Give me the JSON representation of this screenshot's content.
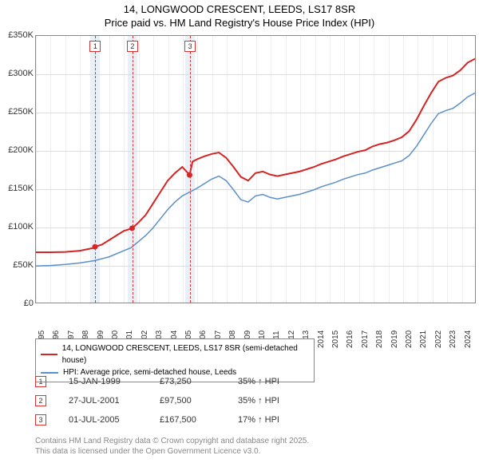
{
  "title_line1": "14, LONGWOOD CRESCENT, LEEDS, LS17 8SR",
  "title_line2": "Price paid vs. HM Land Registry's House Price Index (HPI)",
  "chart": {
    "type": "line",
    "x_min_year": 1995,
    "x_max_year": 2025,
    "y_min": 0,
    "y_max": 350000,
    "y_ticks": [
      0,
      50000,
      100000,
      150000,
      200000,
      250000,
      300000,
      350000
    ],
    "y_tick_labels": [
      "£0",
      "£50K",
      "£100K",
      "£150K",
      "£200K",
      "£250K",
      "£300K",
      "£350K"
    ],
    "x_ticks": [
      1995,
      1996,
      1997,
      1998,
      1999,
      2000,
      2001,
      2002,
      2003,
      2004,
      2005,
      2006,
      2007,
      2008,
      2009,
      2010,
      2011,
      2012,
      2013,
      2014,
      2015,
      2016,
      2017,
      2018,
      2019,
      2020,
      2021,
      2022,
      2023,
      2024
    ],
    "grid_color": "#dddddd",
    "background": "#ffffff",
    "border_color": "#888888",
    "series": [
      {
        "name": "price_paid",
        "label": "14, LONGWOOD CRESCENT, LEEDS, LS17 8SR (semi-detached house)",
        "color": "#d42424",
        "width": 2,
        "points": [
          [
            1995.0,
            66000
          ],
          [
            1996.0,
            66000
          ],
          [
            1997.0,
            66500
          ],
          [
            1998.0,
            68000
          ],
          [
            1999.0,
            72000
          ],
          [
            1999.04,
            73250
          ],
          [
            1999.5,
            76000
          ],
          [
            2000.0,
            82000
          ],
          [
            2000.5,
            88000
          ],
          [
            2001.0,
            94000
          ],
          [
            2001.57,
            97500
          ],
          [
            2002.0,
            105000
          ],
          [
            2002.5,
            115000
          ],
          [
            2003.0,
            130000
          ],
          [
            2003.5,
            145000
          ],
          [
            2004.0,
            160000
          ],
          [
            2004.5,
            170000
          ],
          [
            2005.0,
            178000
          ],
          [
            2005.5,
            167500
          ],
          [
            2005.7,
            185000
          ],
          [
            2006.0,
            188000
          ],
          [
            2006.5,
            192000
          ],
          [
            2007.0,
            195000
          ],
          [
            2007.5,
            197000
          ],
          [
            2008.0,
            190000
          ],
          [
            2008.5,
            178000
          ],
          [
            2009.0,
            165000
          ],
          [
            2009.5,
            160000
          ],
          [
            2010.0,
            170000
          ],
          [
            2010.5,
            172000
          ],
          [
            2011.0,
            168000
          ],
          [
            2011.5,
            166000
          ],
          [
            2012.0,
            168000
          ],
          [
            2012.5,
            170000
          ],
          [
            2013.0,
            172000
          ],
          [
            2013.5,
            175000
          ],
          [
            2014.0,
            178000
          ],
          [
            2014.5,
            182000
          ],
          [
            2015.0,
            185000
          ],
          [
            2015.5,
            188000
          ],
          [
            2016.0,
            192000
          ],
          [
            2016.5,
            195000
          ],
          [
            2017.0,
            198000
          ],
          [
            2017.5,
            200000
          ],
          [
            2018.0,
            205000
          ],
          [
            2018.5,
            208000
          ],
          [
            2019.0,
            210000
          ],
          [
            2019.5,
            213000
          ],
          [
            2020.0,
            217000
          ],
          [
            2020.5,
            225000
          ],
          [
            2021.0,
            240000
          ],
          [
            2021.5,
            258000
          ],
          [
            2022.0,
            275000
          ],
          [
            2022.5,
            290000
          ],
          [
            2023.0,
            295000
          ],
          [
            2023.5,
            298000
          ],
          [
            2024.0,
            305000
          ],
          [
            2024.5,
            315000
          ],
          [
            2025.0,
            320000
          ]
        ]
      },
      {
        "name": "hpi",
        "label": "HPI: Average price, semi-detached house, Leeds",
        "color": "#5b8fc9",
        "width": 1.5,
        "points": [
          [
            1995.0,
            48000
          ],
          [
            1996.0,
            48500
          ],
          [
            1997.0,
            50000
          ],
          [
            1998.0,
            52000
          ],
          [
            1999.0,
            55000
          ],
          [
            2000.0,
            60000
          ],
          [
            2001.0,
            68000
          ],
          [
            2001.5,
            72000
          ],
          [
            2002.0,
            80000
          ],
          [
            2002.5,
            88000
          ],
          [
            2003.0,
            98000
          ],
          [
            2003.5,
            110000
          ],
          [
            2004.0,
            122000
          ],
          [
            2004.5,
            132000
          ],
          [
            2005.0,
            140000
          ],
          [
            2005.5,
            145000
          ],
          [
            2006.0,
            150000
          ],
          [
            2006.5,
            156000
          ],
          [
            2007.0,
            162000
          ],
          [
            2007.5,
            166000
          ],
          [
            2008.0,
            160000
          ],
          [
            2008.5,
            148000
          ],
          [
            2009.0,
            135000
          ],
          [
            2009.5,
            132000
          ],
          [
            2010.0,
            140000
          ],
          [
            2010.5,
            142000
          ],
          [
            2011.0,
            138000
          ],
          [
            2011.5,
            136000
          ],
          [
            2012.0,
            138000
          ],
          [
            2012.5,
            140000
          ],
          [
            2013.0,
            142000
          ],
          [
            2013.5,
            145000
          ],
          [
            2014.0,
            148000
          ],
          [
            2014.5,
            152000
          ],
          [
            2015.0,
            155000
          ],
          [
            2015.5,
            158000
          ],
          [
            2016.0,
            162000
          ],
          [
            2016.5,
            165000
          ],
          [
            2017.0,
            168000
          ],
          [
            2017.5,
            170000
          ],
          [
            2018.0,
            174000
          ],
          [
            2018.5,
            177000
          ],
          [
            2019.0,
            180000
          ],
          [
            2019.5,
            183000
          ],
          [
            2020.0,
            186000
          ],
          [
            2020.5,
            193000
          ],
          [
            2021.0,
            205000
          ],
          [
            2021.5,
            220000
          ],
          [
            2022.0,
            235000
          ],
          [
            2022.5,
            248000
          ],
          [
            2023.0,
            252000
          ],
          [
            2023.5,
            255000
          ],
          [
            2024.0,
            262000
          ],
          [
            2024.5,
            270000
          ],
          [
            2025.0,
            275000
          ]
        ]
      }
    ],
    "markers": [
      {
        "n": "1",
        "year": 1999.04,
        "value": 73250,
        "date": "15-JAN-1999",
        "price": "£73,250",
        "pct": "35% ↑ HPI",
        "band_color": "#eaf0f8",
        "line_color": "#d33"
      },
      {
        "n": "2",
        "year": 2001.57,
        "value": 97500,
        "date": "27-JUL-2001",
        "price": "£97,500",
        "pct": "35% ↑ HPI",
        "band_color": "#eaf0f8",
        "line_color": "#d33"
      },
      {
        "n": "3",
        "year": 2005.5,
        "value": 167500,
        "date": "01-JUL-2005",
        "price": "£167,500",
        "pct": "17% ↑ HPI",
        "band_color": "#eaf0f8",
        "line_color": "#d33"
      }
    ],
    "marker_dot_color": "#d42424"
  },
  "legend": {
    "items": [
      {
        "label": "14, LONGWOOD CRESCENT, LEEDS, LS17 8SR (semi-detached house)",
        "color": "#d42424"
      },
      {
        "label": "HPI: Average price, semi-detached house, Leeds",
        "color": "#5b8fc9"
      }
    ]
  },
  "footer_line1": "Contains HM Land Registry data © Crown copyright and database right 2025.",
  "footer_line2": "This data is licensed under the Open Government Licence v3.0."
}
